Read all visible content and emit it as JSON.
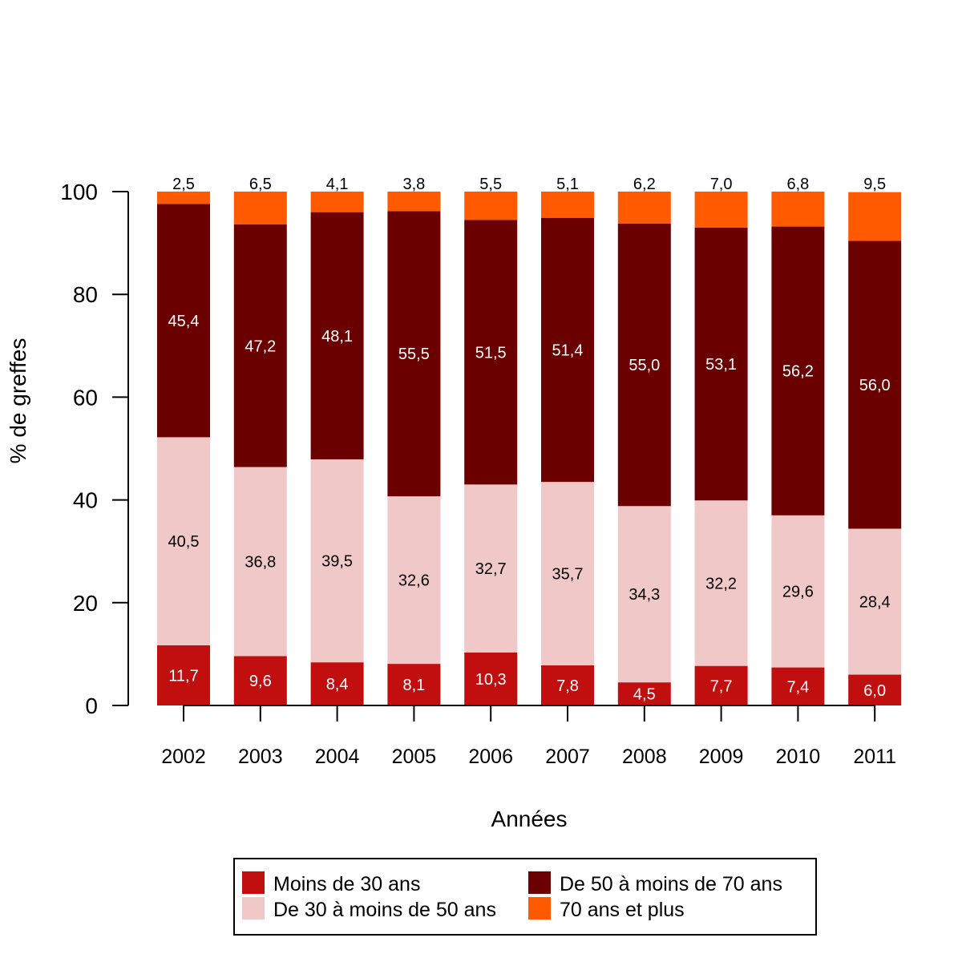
{
  "chart_data": {
    "type": "bar",
    "stacked": true,
    "title": "",
    "xlabel": "Années",
    "ylabel": "% de greffes",
    "ylim": [
      0,
      100
    ],
    "yticks": [
      "0",
      "20",
      "40",
      "60",
      "80",
      "100"
    ],
    "grid": false,
    "legend_position": "bottom",
    "categories": [
      "2002",
      "2003",
      "2004",
      "2005",
      "2006",
      "2007",
      "2008",
      "2009",
      "2010",
      "2011"
    ],
    "series": [
      {
        "name": "Moins de 30 ans",
        "color": "#c10f0f",
        "label_color": "#ffffff",
        "values": [
          11.7,
          9.6,
          8.4,
          8.1,
          10.3,
          7.8,
          4.5,
          7.7,
          7.4,
          6.0
        ],
        "labels": [
          "11,7",
          "9,6",
          "8,4",
          "8,1",
          "10,3",
          "7,8",
          "4,5",
          "7,7",
          "7,4",
          "6,0"
        ]
      },
      {
        "name": "De 30 à moins de 50 ans",
        "color": "#f0c8c8",
        "label_color": "#000000",
        "values": [
          40.5,
          36.8,
          39.5,
          32.6,
          32.7,
          35.7,
          34.3,
          32.2,
          29.6,
          28.4
        ],
        "labels": [
          "40,5",
          "36,8",
          "39,5",
          "32,6",
          "32,7",
          "35,7",
          "34,3",
          "32,2",
          "29,6",
          "28,4"
        ]
      },
      {
        "name": "De 50 à moins de 70 ans",
        "color": "#6b0000",
        "label_color": "#ffffff",
        "values": [
          45.4,
          47.2,
          48.1,
          55.5,
          51.5,
          51.4,
          55.0,
          53.1,
          56.2,
          56.0
        ],
        "labels": [
          "45,4",
          "47,2",
          "48,1",
          "55,5",
          "51,5",
          "51,4",
          "55,0",
          "53,1",
          "56,2",
          "56,0"
        ]
      },
      {
        "name": "70 ans et plus",
        "color": "#ff5a00",
        "label_color": "#000000",
        "values": [
          2.5,
          6.5,
          4.1,
          3.8,
          5.5,
          5.1,
          6.2,
          7.0,
          6.8,
          9.5
        ],
        "labels": [
          "2,5",
          "6,5",
          "4,1",
          "3,8",
          "5,5",
          "5,1",
          "6,2",
          "7,0",
          "6,8",
          "9,5"
        ]
      }
    ]
  }
}
